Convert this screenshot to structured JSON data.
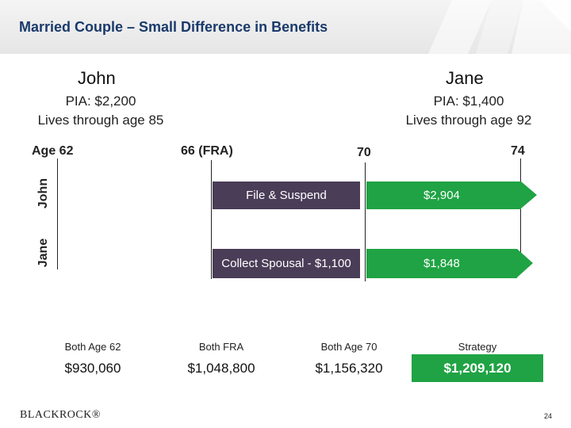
{
  "header": {
    "title": "Married Couple – Small Difference in Benefits"
  },
  "john": {
    "name": "John",
    "pia": "PIA: $2,200",
    "lives": "Lives through age 85"
  },
  "jane": {
    "name": "Jane",
    "pia": "PIA: $1,400",
    "lives": "Lives through age 92"
  },
  "timeline": {
    "ages": [
      "Age 62",
      "66 (FRA)",
      "70",
      "74"
    ],
    "rows": [
      {
        "label": "John",
        "action": "File & Suspend",
        "benefit": "$2,904"
      },
      {
        "label": "Jane",
        "action": "Collect Spousal - $1,100",
        "benefit": "$1,848"
      }
    ]
  },
  "scenarios": [
    {
      "label": "Both Age 62",
      "value": "$930,060"
    },
    {
      "label": "Both FRA",
      "value": "$1,048,800"
    },
    {
      "label": "Both Age 70",
      "value": "$1,156,320"
    },
    {
      "label": "Strategy",
      "value": "$1,209,120"
    }
  ],
  "footer": {
    "logo": "BLACKROCK®",
    "page_number": "24"
  },
  "colors": {
    "title_blue": "#1a3a6b",
    "purple_bar": "#4a3d57",
    "green_bar": "#1fa344"
  }
}
